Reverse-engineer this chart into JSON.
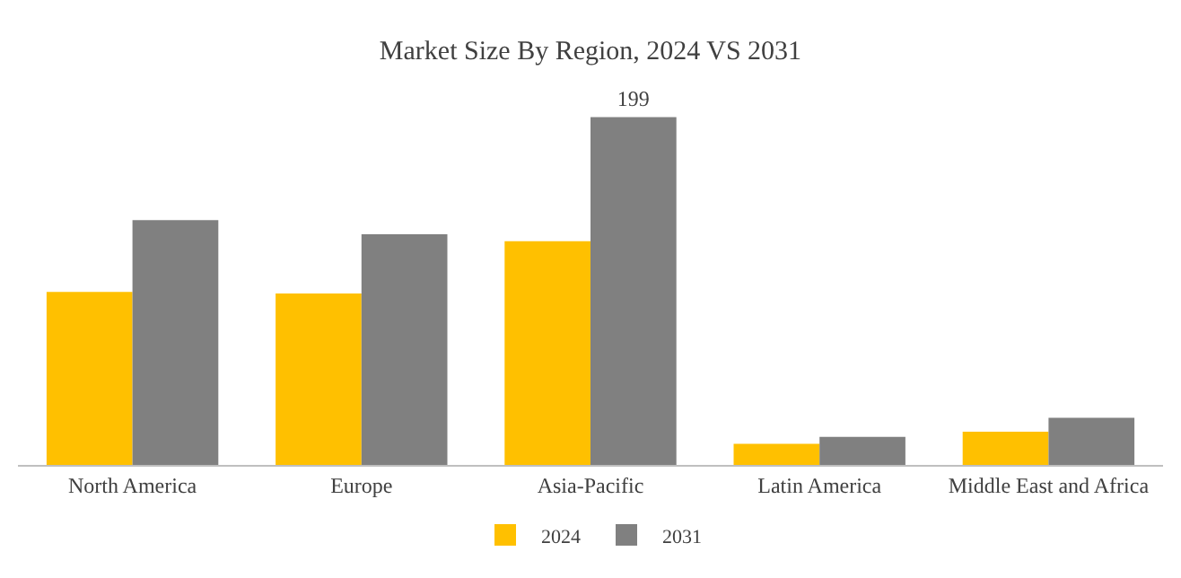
{
  "chart_data": {
    "type": "bar",
    "title": "Market Size By Region, 2024 VS 2031",
    "categories": [
      "North America",
      "Europe",
      "Asia-Pacific",
      "Latin America",
      "Middle East and Africa"
    ],
    "series": [
      {
        "name": "2024",
        "color": "#ffc000",
        "values": [
          99,
          98,
          128,
          12,
          19
        ]
      },
      {
        "name": "2031",
        "color": "#808080",
        "values": [
          140,
          132,
          199,
          16,
          27
        ],
        "value_labels": [
          null,
          null,
          "199",
          null,
          null
        ]
      }
    ],
    "legend": "bottom",
    "tick_labels": "x"
  }
}
